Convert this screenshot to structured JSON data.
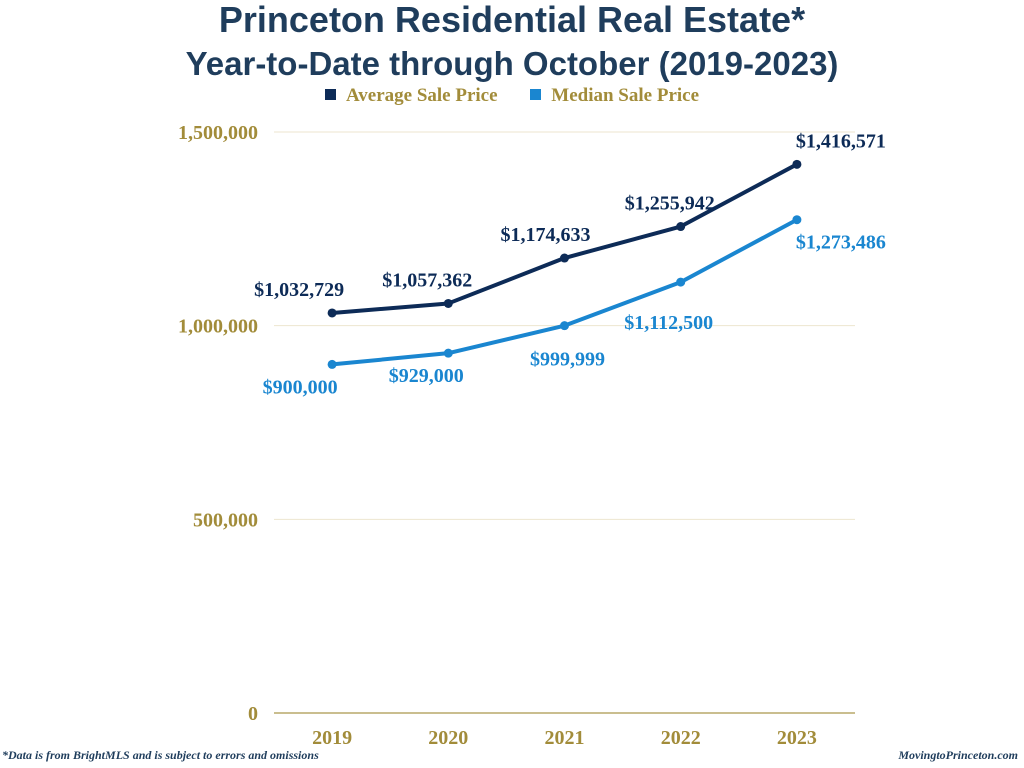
{
  "chart_data": {
    "type": "line",
    "title": "Princeton Residential Real Estate*",
    "subtitle": "Year-to-Date through October (2019-2023)",
    "xlabel": "",
    "ylabel": "",
    "categories": [
      "2019",
      "2020",
      "2021",
      "2022",
      "2023"
    ],
    "series": [
      {
        "name": "Average Sale Price",
        "color": "#0d2b57",
        "values": [
          1032729,
          1057362,
          1174633,
          1255942,
          1416571
        ],
        "labels": [
          "$1,032,729",
          "$1,057,362",
          "$1,174,633",
          "$1,255,942",
          "$1,416,571"
        ],
        "label_position": "above"
      },
      {
        "name": "Median Sale Price",
        "color": "#1a86d0",
        "values": [
          900000,
          929000,
          999999,
          1112500,
          1273486
        ],
        "labels": [
          "$900,000",
          "$929,000",
          "$999,999",
          "$1,112,500",
          "$1,273,486"
        ],
        "label_position": "below"
      }
    ],
    "ylim": [
      0,
      1500000
    ],
    "yticks": [
      0,
      500000,
      1000000,
      1500000
    ],
    "ytick_labels": [
      "0",
      "500,000",
      "1,000,000",
      "1,500,000"
    ],
    "grid": true,
    "legend": "top-center"
  },
  "colors": {
    "title": "#1f3d5c",
    "axis_text": "#a28c3a",
    "grid": "#ede6cf"
  },
  "footer": {
    "left": "*Data is from BrightMLS and is subject to errors and omissions",
    "right": "MovingtoPrinceton.com"
  }
}
